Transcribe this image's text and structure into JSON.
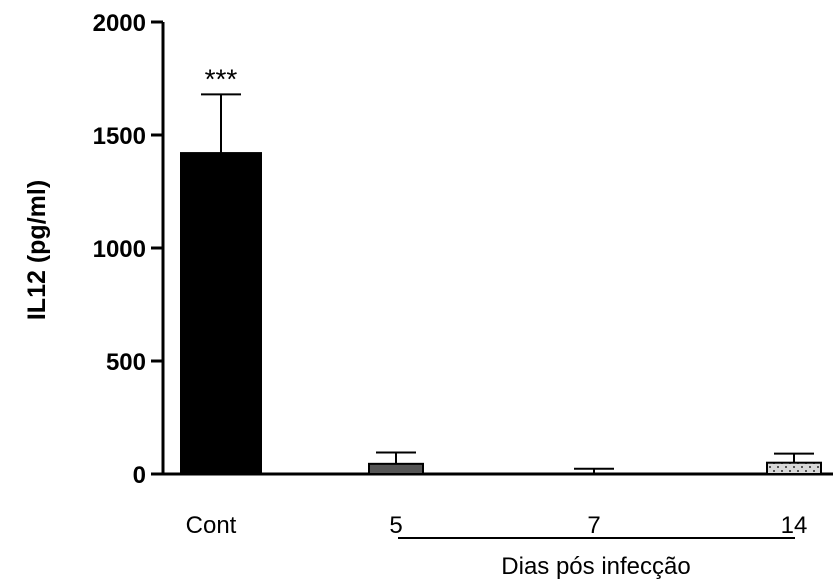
{
  "chart_data": {
    "type": "bar",
    "ylabel": "IL12 (pg/ml)",
    "ylim": [
      0,
      2000
    ],
    "yticks": [
      0,
      500,
      1000,
      1500,
      2000
    ],
    "categories": [
      "Cont",
      "5",
      "7",
      "14"
    ],
    "values": [
      1420,
      45,
      3,
      50
    ],
    "errors": [
      260,
      50,
      20,
      40
    ],
    "fills": [
      "solid-black",
      "dark-gray",
      "none",
      "light-gray-dotted"
    ],
    "colors": [
      "#000000",
      "#555555",
      "#ffffff",
      "#d9d9d9"
    ],
    "annotations": [
      {
        "category": "Cont",
        "text": "***"
      }
    ],
    "group_label": {
      "text": "Dias pós infecção",
      "spans": [
        "5",
        "7",
        "14"
      ]
    }
  }
}
